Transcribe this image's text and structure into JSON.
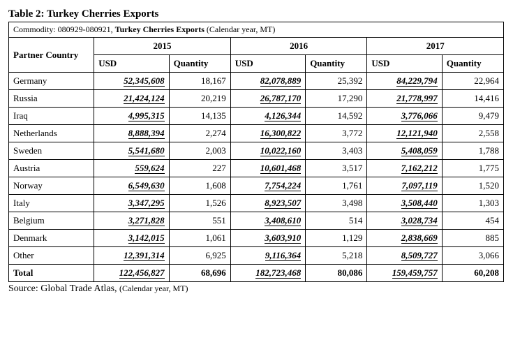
{
  "title": "Table 2: Turkey Cherries Exports",
  "caption_prefix": "Commodity: 080929-080921, ",
  "caption_bold": "Turkey Cherries Exports",
  "caption_suffix": " (Calendar year, MT)",
  "partner_header": "Partner Country",
  "usd_header": "USD",
  "qty_header": "Quantity",
  "years": [
    "2015",
    "2016",
    "2017"
  ],
  "rows": [
    {
      "country": "Germany",
      "y2015_usd": "52,345,608",
      "y2015_qty": "18,167",
      "y2016_usd": "82,078,889",
      "y2016_qty": "25,392",
      "y2017_usd": "84,229,794",
      "y2017_qty": "22,964"
    },
    {
      "country": "Russia",
      "y2015_usd": "21,424,124",
      "y2015_qty": "20,219",
      "y2016_usd": "26,787,170",
      "y2016_qty": "17,290",
      "y2017_usd": "21,778,997",
      "y2017_qty": "14,416"
    },
    {
      "country": "Iraq",
      "y2015_usd": "4,995,315",
      "y2015_qty": "14,135",
      "y2016_usd": "4,126,344",
      "y2016_qty": "14,592",
      "y2017_usd": "3,776,066",
      "y2017_qty": "9,479"
    },
    {
      "country": "Netherlands",
      "y2015_usd": "8,888,394",
      "y2015_qty": "2,274",
      "y2016_usd": "16,300,822",
      "y2016_qty": "3,772",
      "y2017_usd": "12,121,940",
      "y2017_qty": "2,558"
    },
    {
      "country": "Sweden",
      "y2015_usd": "5,541,680",
      "y2015_qty": "2,003",
      "y2016_usd": "10,022,160",
      "y2016_qty": "3,403",
      "y2017_usd": "5,408,059",
      "y2017_qty": "1,788"
    },
    {
      "country": "Austria",
      "y2015_usd": "559,624",
      "y2015_qty": "227",
      "y2016_usd": "10,601,468",
      "y2016_qty": "3,517",
      "y2017_usd": "7,162,212",
      "y2017_qty": "1,775"
    },
    {
      "country": "Norway",
      "y2015_usd": "6,549,630",
      "y2015_qty": "1,608",
      "y2016_usd": "7,754,224",
      "y2016_qty": "1,761",
      "y2017_usd": "7,097,119",
      "y2017_qty": "1,520"
    },
    {
      "country": "Italy",
      "y2015_usd": "3,347,295",
      "y2015_qty": "1,526",
      "y2016_usd": "8,923,507",
      "y2016_qty": "3,498",
      "y2017_usd": "3,508,440",
      "y2017_qty": "1,303"
    },
    {
      "country": "Belgium",
      "y2015_usd": "3,271,828",
      "y2015_qty": "551",
      "y2016_usd": "3,408,610",
      "y2016_qty": "514",
      "y2017_usd": "3,028,734",
      "y2017_qty": "454"
    },
    {
      "country": "Denmark",
      "y2015_usd": "3,142,015",
      "y2015_qty": "1,061",
      "y2016_usd": "3,603,910",
      "y2016_qty": "1,129",
      "y2017_usd": "2,838,669",
      "y2017_qty": "885"
    },
    {
      "country": "Other",
      "y2015_usd": "12,391,314",
      "y2015_qty": "6,925",
      "y2016_usd": "9,116,364",
      "y2016_qty": "5,218",
      "y2017_usd": "8,509,727",
      "y2017_qty": "3,066"
    }
  ],
  "total": {
    "country": "Total",
    "y2015_usd": "122,456,827",
    "y2015_qty": "68,696",
    "y2016_usd": "182,723,468",
    "y2016_qty": "80,086",
    "y2017_usd": "159,459,757",
    "y2017_qty": "60,208"
  },
  "source_prefix": "Source: Global Trade Atlas, ",
  "source_suffix": "(Calendar year, MT)"
}
